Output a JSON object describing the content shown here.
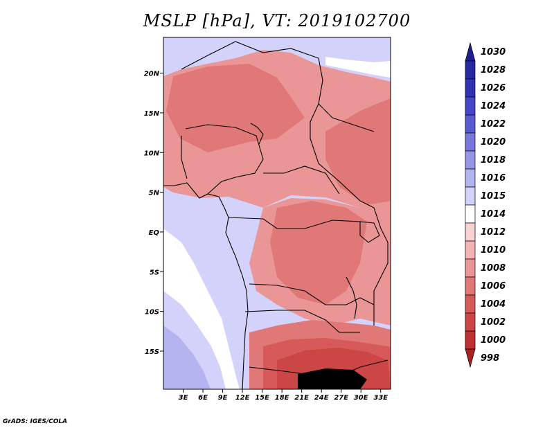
{
  "chart_data": {
    "type": "heatmap",
    "title": "MSLP [hPa], VT: 2019102700",
    "variable": "Mean sea level pressure",
    "units": "hPa",
    "valid_time": "2019102700",
    "x_ticks": [
      "3E",
      "6E",
      "9E",
      "12E",
      "15E",
      "18E",
      "21E",
      "24E",
      "27E",
      "30E",
      "33E"
    ],
    "y_ticks": [
      "20N",
      "15N",
      "10N",
      "5N",
      "EQ",
      "5S",
      "10S",
      "15S"
    ],
    "xlim": [
      0,
      34.5
    ],
    "ylim": [
      -19.8,
      24.5
    ],
    "legend_levels": [
      "1030",
      "1028",
      "1026",
      "1024",
      "1022",
      "1020",
      "1018",
      "1016",
      "1015",
      "1014",
      "1012",
      "1010",
      "1008",
      "1006",
      "1004",
      "1002",
      "1000",
      "998"
    ],
    "legend_colors": [
      "#1e1e8c",
      "#2828a0",
      "#3232b4",
      "#4646c8",
      "#5a5ad2",
      "#7878dc",
      "#9696e6",
      "#b4b4f0",
      "#d2d2fa",
      "#ffffff",
      "#fad2d2",
      "#f4b4b4",
      "#eb9696",
      "#e07878",
      "#d65a5a",
      "#cd4646",
      "#be3232",
      "#aa2222"
    ],
    "regions": [
      {
        "label": "1016",
        "color": "#b4b4f0"
      },
      {
        "label": "1015",
        "color": "#d2d2fa"
      },
      {
        "label": "1014",
        "color": "#ffffff"
      },
      {
        "label": "1012",
        "color": "#fad2d2"
      },
      {
        "label": "1010",
        "color": "#f4b4b4"
      },
      {
        "label": "1008",
        "color": "#eb9696"
      },
      {
        "label": "1006",
        "color": "#e07878"
      },
      {
        "label": "1004",
        "color": "#d65a5a"
      },
      {
        "label": "1002",
        "color": "#cd4646"
      }
    ]
  },
  "footer": "GrADS: IGES/COLA"
}
